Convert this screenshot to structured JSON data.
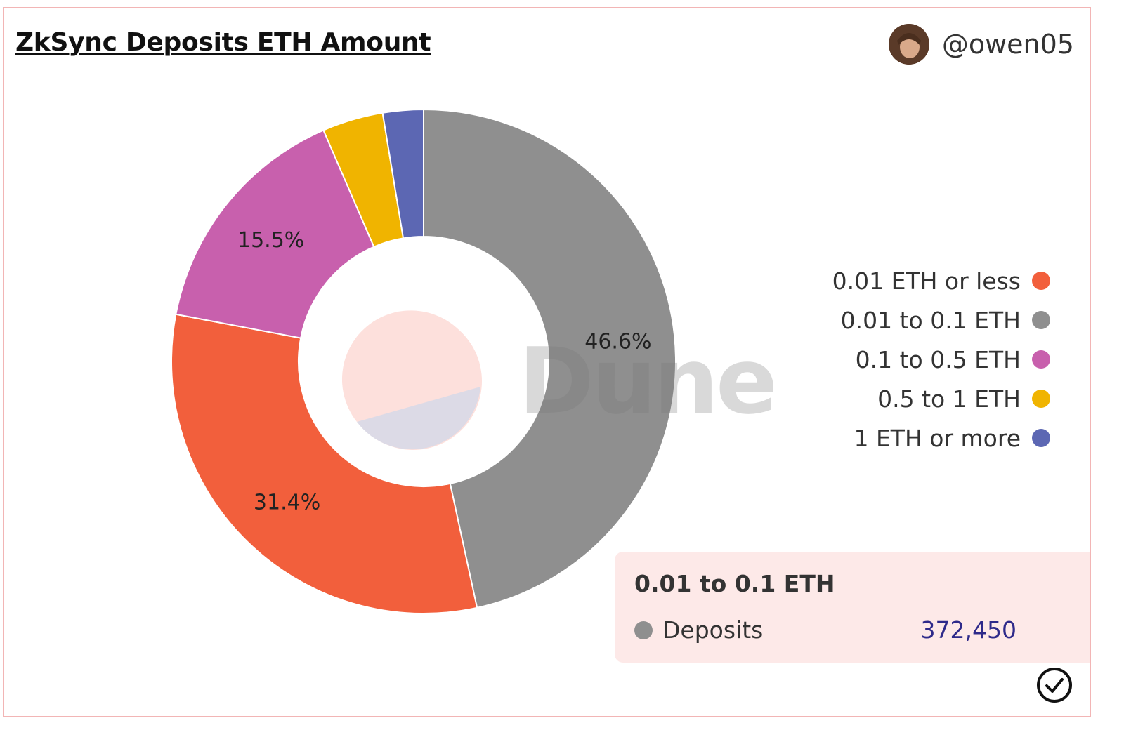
{
  "header": {
    "title": "ZkSync Deposits ETH Amount",
    "author_handle": "@owen05"
  },
  "watermark": "Dune",
  "chart_data": {
    "type": "pie",
    "donut": true,
    "legend_position": "right",
    "slices": [
      {
        "label": "0.01 ETH or less",
        "percent": 31.4,
        "color": "#f25f3c",
        "label_shown": "31.4%"
      },
      {
        "label": "0.01 to 0.1 ETH",
        "percent": 46.6,
        "color": "#8f8f8f",
        "label_shown": "46.6%"
      },
      {
        "label": "0.1 to 0.5 ETH",
        "percent": 15.5,
        "color": "#c860ad",
        "label_shown": "15.5%"
      },
      {
        "label": "0.5 to 1 ETH",
        "percent": 3.9,
        "color": "#f0b400",
        "label_shown": ""
      },
      {
        "label": "1 ETH or more",
        "percent": 2.6,
        "color": "#5c67b3",
        "label_shown": ""
      }
    ]
  },
  "tooltip": {
    "title": "0.01 to 0.1 ETH",
    "series_name": "Deposits",
    "value": "372,450"
  },
  "icons": {
    "avatar": "user-avatar",
    "confirm": "checkmark-circle-icon"
  }
}
